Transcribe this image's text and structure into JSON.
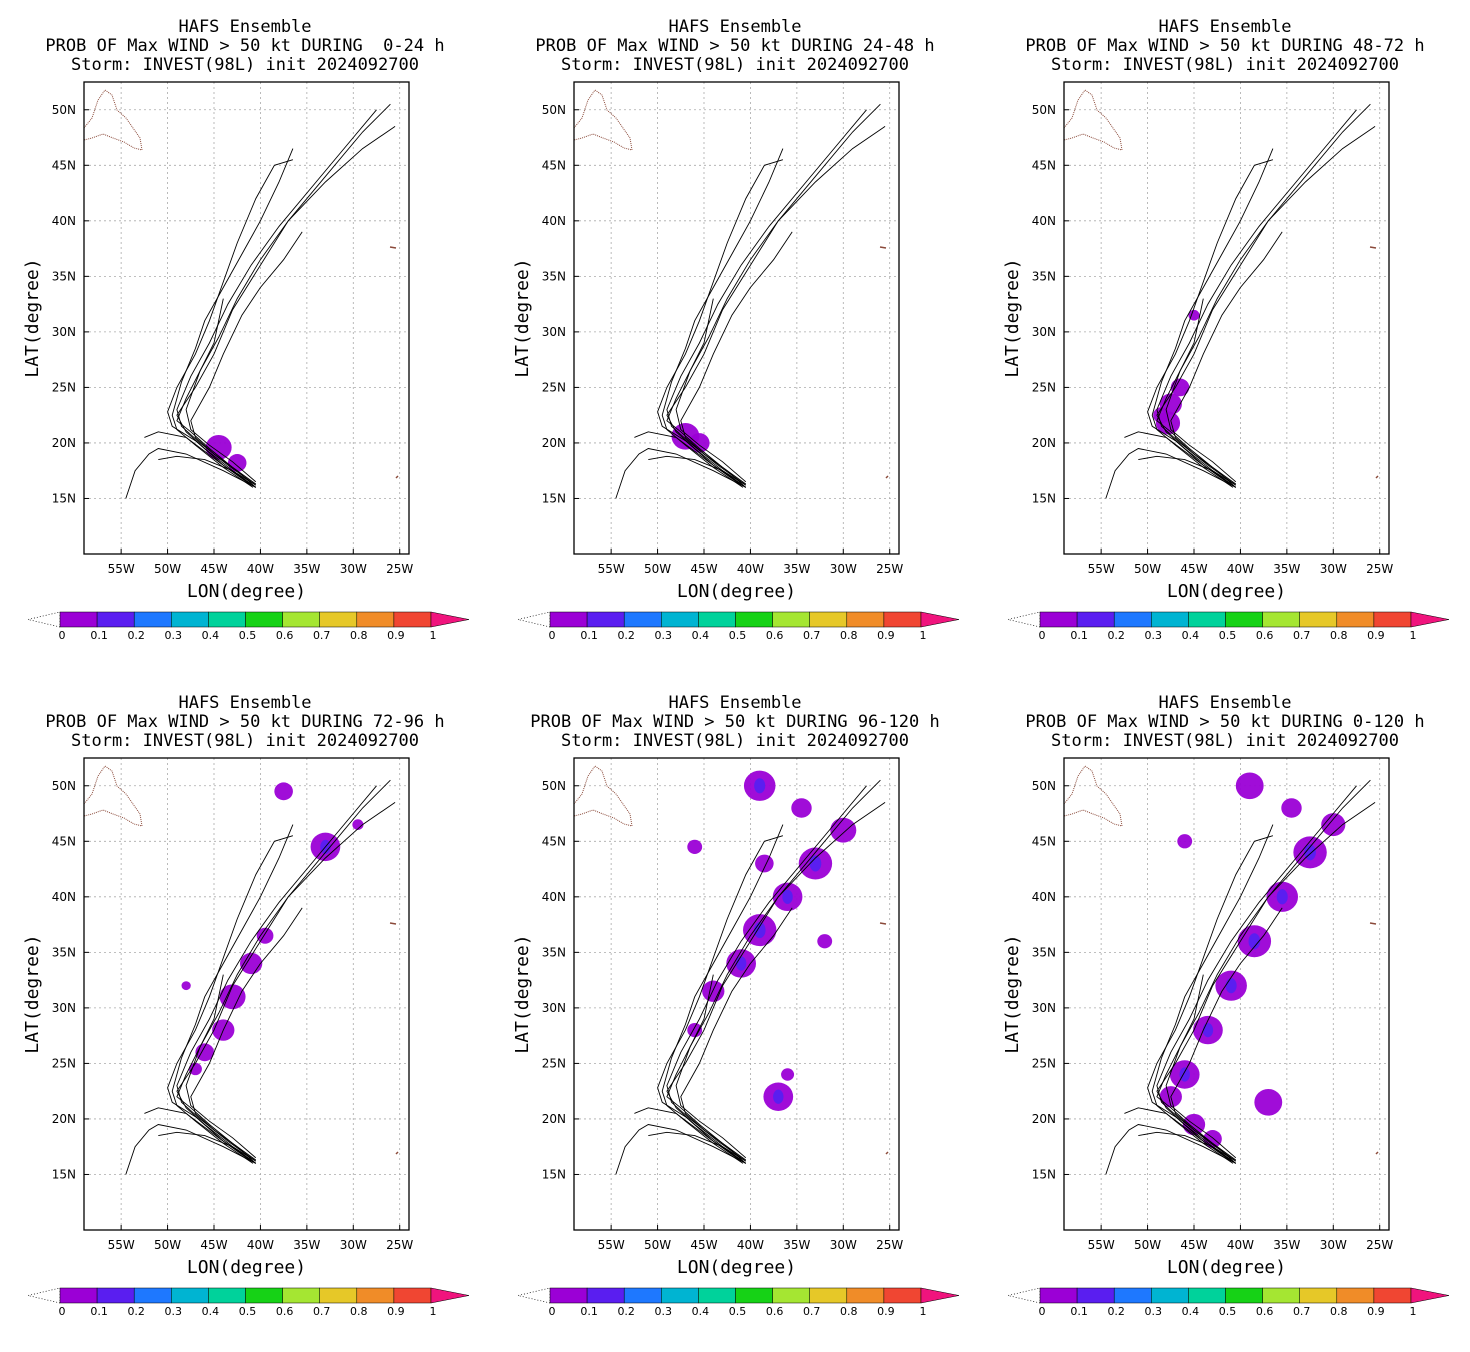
{
  "figure": {
    "panels": [
      {
        "title1": "HAFS Ensemble",
        "title2": "PROB OF Max WIND > 50 kt DURING  0-24 h",
        "title3": "Storm: INVEST(98L) init 2024092700",
        "coverage": "early"
      },
      {
        "title1": "HAFS Ensemble",
        "title2": "PROB OF Max WIND > 50 kt DURING 24-48 h",
        "title3": "Storm: INVEST(98L) init 2024092700",
        "coverage": "mid"
      },
      {
        "title1": "HAFS Ensemble",
        "title2": "PROB OF Max WIND > 50 kt DURING 48-72 h",
        "title3": "Storm: INVEST(98L) init 2024092700",
        "coverage": "turn"
      },
      {
        "title1": "HAFS Ensemble",
        "title2": "PROB OF Max WIND > 50 kt DURING 72-96 h",
        "title3": "Storm: INVEST(98L) init 2024092700",
        "coverage": "north"
      },
      {
        "title1": "HAFS Ensemble",
        "title2": "PROB OF Max WIND > 50 kt DURING 96-120 h",
        "title3": "Storm: INVEST(98L) init 2024092700",
        "coverage": "late"
      },
      {
        "title1": "HAFS Ensemble",
        "title2": "PROB OF Max WIND > 50 kt DURING 0-120 h",
        "title3": "Storm: INVEST(98L) init 2024092700",
        "coverage": "all"
      }
    ],
    "xlabel": "LON(degree)",
    "ylabel": "LAT(degree)",
    "xticks": [
      "55W",
      "50W",
      "45W",
      "40W",
      "35W",
      "30W",
      "25W"
    ],
    "yticks": [
      "15N",
      "20N",
      "25N",
      "30N",
      "35N",
      "40N",
      "45N",
      "50N"
    ],
    "colorbar": {
      "labels": [
        "0",
        "0.1",
        "0.2",
        "0.3",
        "0.4",
        "0.5",
        "0.6",
        "0.7",
        "0.8",
        "0.9",
        "1"
      ],
      "colors": [
        "#9b00d6",
        "#5a1ef0",
        "#1e78ff",
        "#00b4d2",
        "#00d29b",
        "#16d216",
        "#a5e632",
        "#e6c828",
        "#f08c28",
        "#f04632",
        "#f0147d"
      ]
    }
  },
  "chart_data": {
    "type": "heatmap",
    "x_range": [
      -59,
      -24
    ],
    "y_range": [
      10,
      52.5
    ],
    "ensemble_tracks": [
      [
        [
          -40.5,
          16
        ],
        [
          -43,
          17.5
        ],
        [
          -46,
          19.5
        ],
        [
          -48,
          21
        ],
        [
          -49,
          22.5
        ],
        [
          -47,
          25
        ],
        [
          -45,
          28
        ],
        [
          -43,
          32
        ],
        [
          -40,
          36
        ],
        [
          -37,
          40
        ],
        [
          -33,
          44
        ],
        [
          -29,
          48
        ],
        [
          -26,
          50.5
        ]
      ],
      [
        [
          -40.5,
          16.2
        ],
        [
          -43.5,
          18
        ],
        [
          -46.5,
          20
        ],
        [
          -48.5,
          21.5
        ],
        [
          -49,
          23
        ],
        [
          -47.5,
          26
        ],
        [
          -45.5,
          29
        ],
        [
          -43.5,
          32.5
        ],
        [
          -41,
          36
        ],
        [
          -38,
          39.5
        ],
        [
          -34,
          43.5
        ],
        [
          -30,
          47.5
        ],
        [
          -27.5,
          50
        ]
      ],
      [
        [
          -40.5,
          16.5
        ],
        [
          -43,
          18.3
        ],
        [
          -45.5,
          19.8
        ],
        [
          -47.5,
          21.2
        ],
        [
          -48,
          23
        ],
        [
          -46.5,
          26.5
        ],
        [
          -44.5,
          29.5
        ],
        [
          -42.5,
          33
        ],
        [
          -40,
          36.5
        ],
        [
          -37,
          40
        ],
        [
          -33,
          43.5
        ],
        [
          -29,
          46.5
        ],
        [
          -25.5,
          48.5
        ]
      ],
      [
        [
          -40.8,
          16
        ],
        [
          -44,
          17.8
        ],
        [
          -47,
          19.8
        ],
        [
          -49,
          21.2
        ],
        [
          -49.5,
          22.5
        ],
        [
          -48.5,
          25.5
        ],
        [
          -47,
          28.5
        ],
        [
          -46,
          31
        ],
        [
          -44,
          34
        ],
        [
          -42,
          37
        ],
        [
          -40,
          40
        ],
        [
          -38,
          43.5
        ],
        [
          -36.5,
          46.5
        ]
      ],
      [
        [
          -41,
          16.2
        ],
        [
          -44,
          18
        ],
        [
          -47,
          20.2
        ],
        [
          -49.5,
          21.5
        ],
        [
          -50,
          22.8
        ],
        [
          -49,
          25
        ],
        [
          -47,
          28
        ],
        [
          -45.5,
          31
        ],
        [
          -44,
          34.5
        ],
        [
          -42.5,
          38
        ],
        [
          -40.5,
          42
        ],
        [
          -38.5,
          45
        ],
        [
          -36.5,
          45.5
        ]
      ],
      [
        [
          -40.5,
          16
        ],
        [
          -42.5,
          17.5
        ],
        [
          -45,
          19
        ],
        [
          -47,
          20.5
        ],
        [
          -47.5,
          22
        ],
        [
          -45.5,
          25
        ],
        [
          -44,
          28
        ],
        [
          -42,
          31.5
        ],
        [
          -40,
          34
        ],
        [
          -37.5,
          36.5
        ],
        [
          -35.5,
          39
        ]
      ],
      [
        [
          -40.5,
          16.3
        ],
        [
          -43,
          17.8
        ],
        [
          -45.5,
          19.5
        ],
        [
          -47.5,
          21
        ],
        [
          -49,
          22
        ],
        [
          -48,
          24
        ],
        [
          -46.5,
          26.5
        ],
        [
          -45,
          29
        ],
        [
          -44,
          33
        ]
      ],
      [
        [
          -40.5,
          16
        ],
        [
          -44,
          17.5
        ],
        [
          -48,
          19
        ],
        [
          -51,
          19.5
        ],
        [
          -52,
          19
        ],
        [
          -53.5,
          17.5
        ],
        [
          -54.5,
          15
        ]
      ],
      [
        [
          -40.5,
          16
        ],
        [
          -44,
          18
        ],
        [
          -48,
          20.5
        ],
        [
          -51,
          21
        ],
        [
          -52.5,
          20.5
        ]
      ],
      [
        [
          -40.5,
          16.2
        ],
        [
          -43,
          17.5
        ],
        [
          -46,
          18.5
        ],
        [
          -49,
          18.8
        ],
        [
          -51,
          18.5
        ]
      ]
    ],
    "probability_regions": {
      "0-24 h": "0-0.1 near 20N 45W",
      "24-48 h": "0-0.1 near 21N 47W",
      "48-72 h": "0-0.1 near 23N 48W",
      "72-96 h": "0-0.2 along 25N-37N track",
      "96-120 h": "0-0.2 along 30N-47N track and near 21N 38W",
      "0-120 h": "0-0.2 along full track"
    }
  }
}
